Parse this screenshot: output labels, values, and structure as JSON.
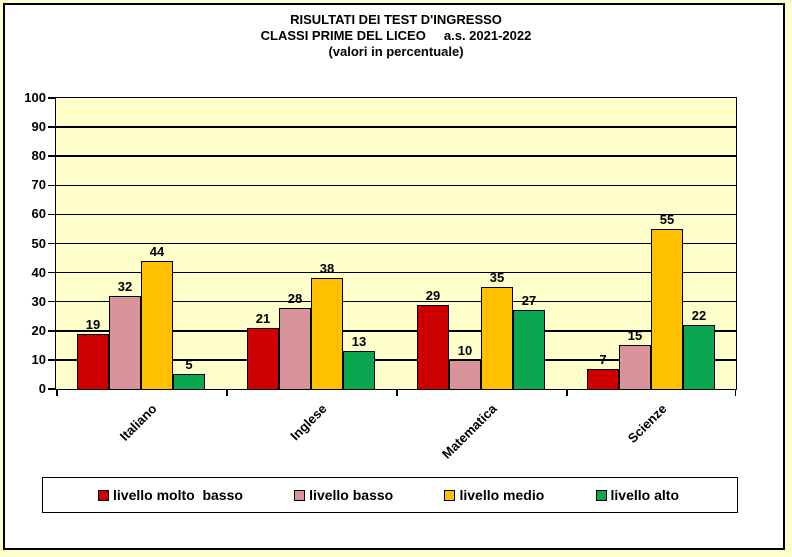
{
  "title": {
    "line1": "RISULTATI DEI TEST D'INGRESSO",
    "line2": "CLASSI PRIME DEL LICEO     a.s. 2021-2022",
    "line3": "(valori in percentuale)"
  },
  "chart_data": {
    "type": "bar",
    "categories": [
      "Italiano",
      "Inglese",
      "Matematica",
      "Scienze"
    ],
    "series": [
      {
        "name": "livello molto  basso",
        "color": "#CC0000",
        "values": [
          19,
          21,
          29,
          7
        ]
      },
      {
        "name": "livello basso",
        "color": "#D9949B",
        "values": [
          32,
          28,
          10,
          15
        ]
      },
      {
        "name": "livello medio",
        "color": "#FFC000",
        "values": [
          44,
          38,
          35,
          55
        ]
      },
      {
        "name": "livello alto",
        "color": "#0AA650",
        "values": [
          5,
          13,
          27,
          22
        ]
      }
    ],
    "ylim": [
      0,
      100
    ],
    "ytick_step": 10,
    "grid": true,
    "legend_position": "bottom",
    "plot_bg": "#FFFFCC",
    "page_bg": "#FFFFCC",
    "value_labels": true
  }
}
